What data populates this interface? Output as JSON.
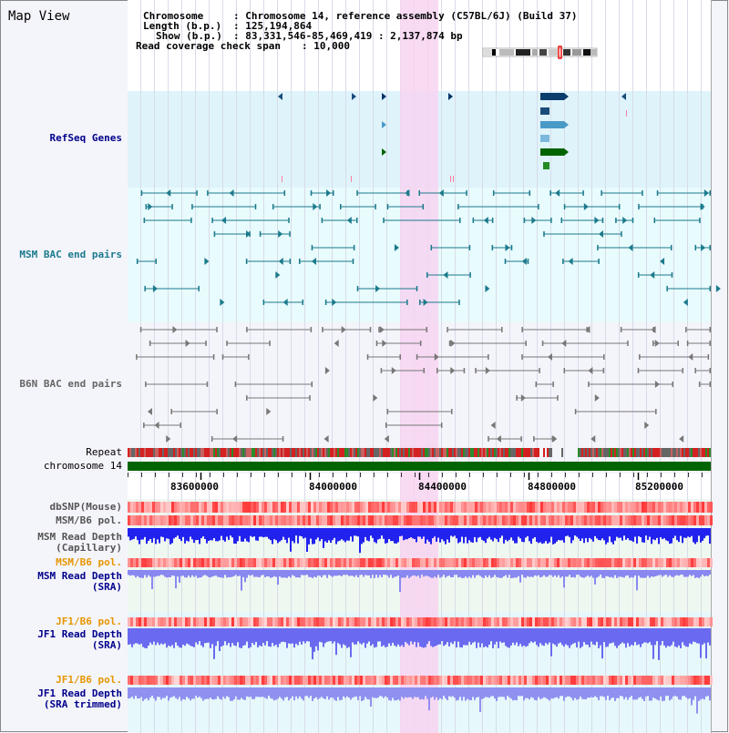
{
  "header": {
    "title": "Map View",
    "chromosome_key": "Chromosome",
    "chromosome_value": ": Chromosome 14, reference assembly (C57BL/6J) (Build 37)",
    "length_key": "Length (b.p.)",
    "length_value": ": 125,194,864",
    "show_key": "Show (b.p.)",
    "show_value": ": 83,331,546-85,469,419 : 2,137,874 bp",
    "coverage_key": "Read coverage check span",
    "coverage_value": ": 10,000"
  },
  "tracks": {
    "refseq": "RefSeq Genes",
    "msm_bac": "MSM BAC end pairs",
    "b6n_bac": "B6N BAC end pairs",
    "repeat": "Repeat",
    "chromosome": "chromosome 14",
    "dbsnp": "dbSNP(Mouse)",
    "msm_b6_pol_1": "MSM/B6 pol.",
    "msm_depth_cap_1": "MSM Read Depth",
    "msm_depth_cap_2": "(Capillary)",
    "msm_b6_pol_2": "MSM/B6 pol.",
    "msm_depth_sra_1": "MSM Read Depth",
    "msm_depth_sra_2": "(SRA)",
    "jf1_b6_pol_1": "JF1/B6 pol.",
    "jf1_depth_sra_1": "JF1 Read Depth",
    "jf1_depth_sra_2": "(SRA)",
    "jf1_b6_pol_2": "JF1/B6 pol.",
    "jf1_depth_trim_1": "JF1 Read Depth",
    "jf1_depth_trim_2": "(SRA trimmed)"
  },
  "axis": {
    "ticks": [
      "83600000",
      "84000000",
      "84400000",
      "84800000",
      "85200000"
    ]
  },
  "colors": {
    "refseq_bg": "#dff3fb",
    "msm_bg": "#e8fbfd",
    "b6n_bg": "#f4f4fb",
    "highlight": "#f7d4f1",
    "msm_feature": "#1b7a8c",
    "b6n_feature": "#777777",
    "chromosome": "#006400",
    "label_blue": "#00008b",
    "label_orange": "#e69600",
    "depth_blue": "#2222ee",
    "depth_light": "#8888f0"
  }
}
